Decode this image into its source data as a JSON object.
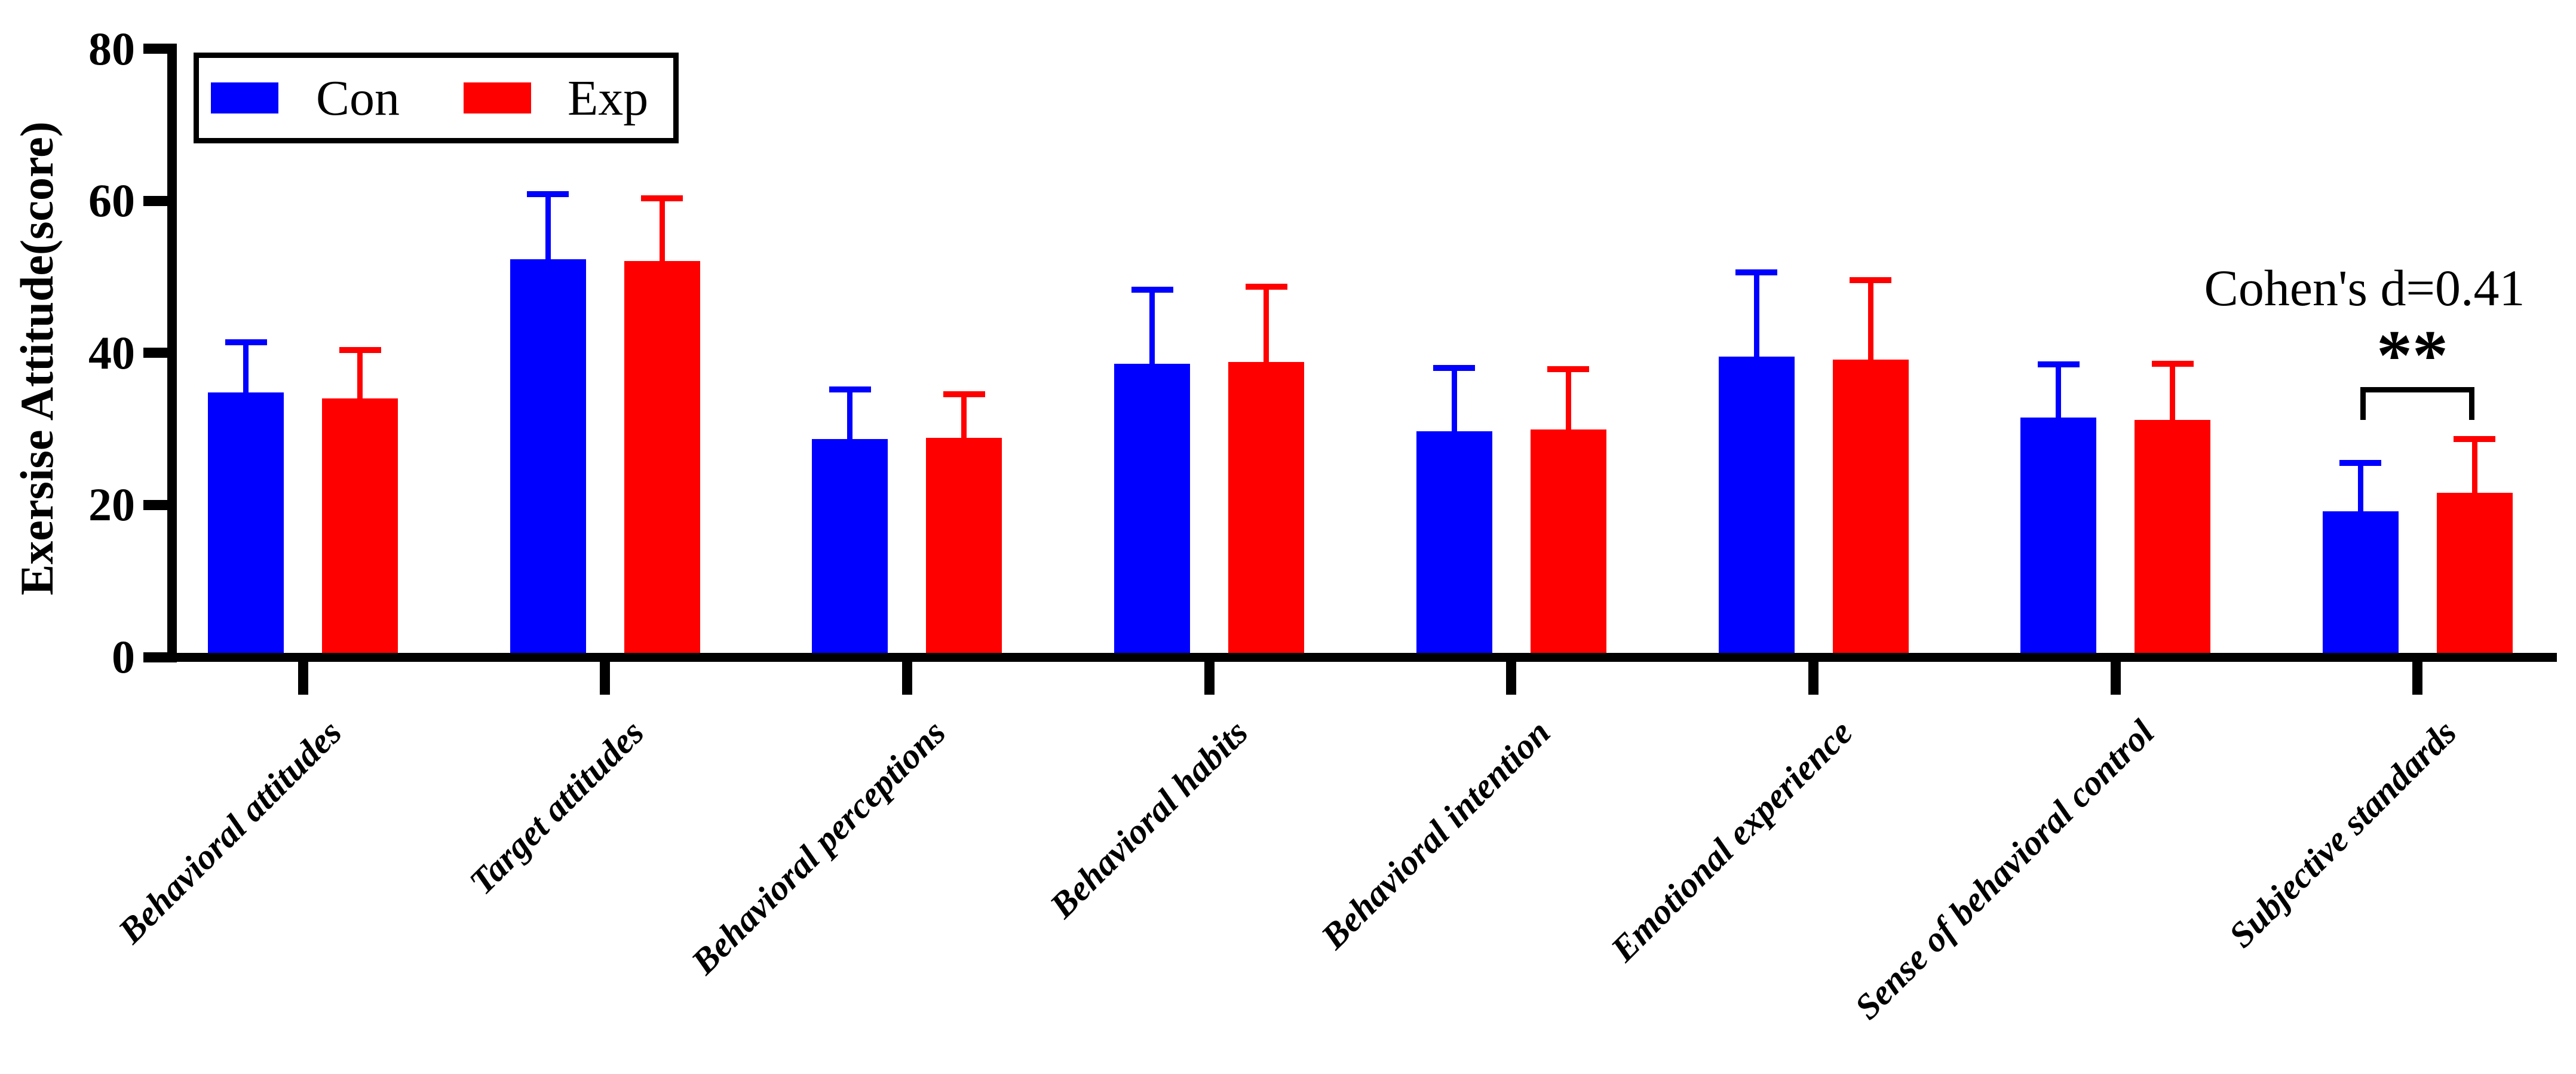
{
  "figure": {
    "background": "#ffffff",
    "axis_color": "#000000"
  },
  "legend": {
    "items": [
      {
        "label": "Con",
        "color": "#0000ff"
      },
      {
        "label": "Exp",
        "color": "#ff0000"
      }
    ]
  },
  "annotation": {
    "text": "Cohen's d=0.41",
    "stars": "**"
  },
  "chart_data": {
    "type": "bar",
    "title": "",
    "xlabel": "",
    "ylabel": "Exersise Attitude(score)",
    "ylim": [
      0,
      80
    ],
    "yticks": [
      0,
      20,
      40,
      60,
      80
    ],
    "grid": false,
    "legend_position": "top-left-inside",
    "error_bars": "upper",
    "categories": [
      "Behavioral attitudes",
      "Target attitudes",
      "Behavioral perceptions",
      "Behavioral habits",
      "Behavioral intention",
      "Emotional experience",
      "Sense of behavioral control",
      "Subjective standards"
    ],
    "series": [
      {
        "name": "Con",
        "color": "#0000ff",
        "values": [
          34.8,
          52.3,
          28.7,
          38.6,
          29.7,
          39.5,
          31.5,
          19.2
        ],
        "errors": [
          6.6,
          8.6,
          6.5,
          9.7,
          8.3,
          11.1,
          7.0,
          6.3
        ]
      },
      {
        "name": "Exp",
        "color": "#ff0000",
        "values": [
          34.0,
          52.1,
          28.8,
          38.8,
          29.9,
          39.1,
          31.2,
          21.6
        ],
        "errors": [
          6.4,
          8.2,
          5.8,
          9.9,
          8.0,
          10.5,
          7.4,
          7.1
        ]
      }
    ],
    "annotation": {
      "text": "Cohen's d=0.41",
      "stars": "**",
      "category": "Subjective standards",
      "between_series": [
        "Con",
        "Exp"
      ]
    }
  }
}
